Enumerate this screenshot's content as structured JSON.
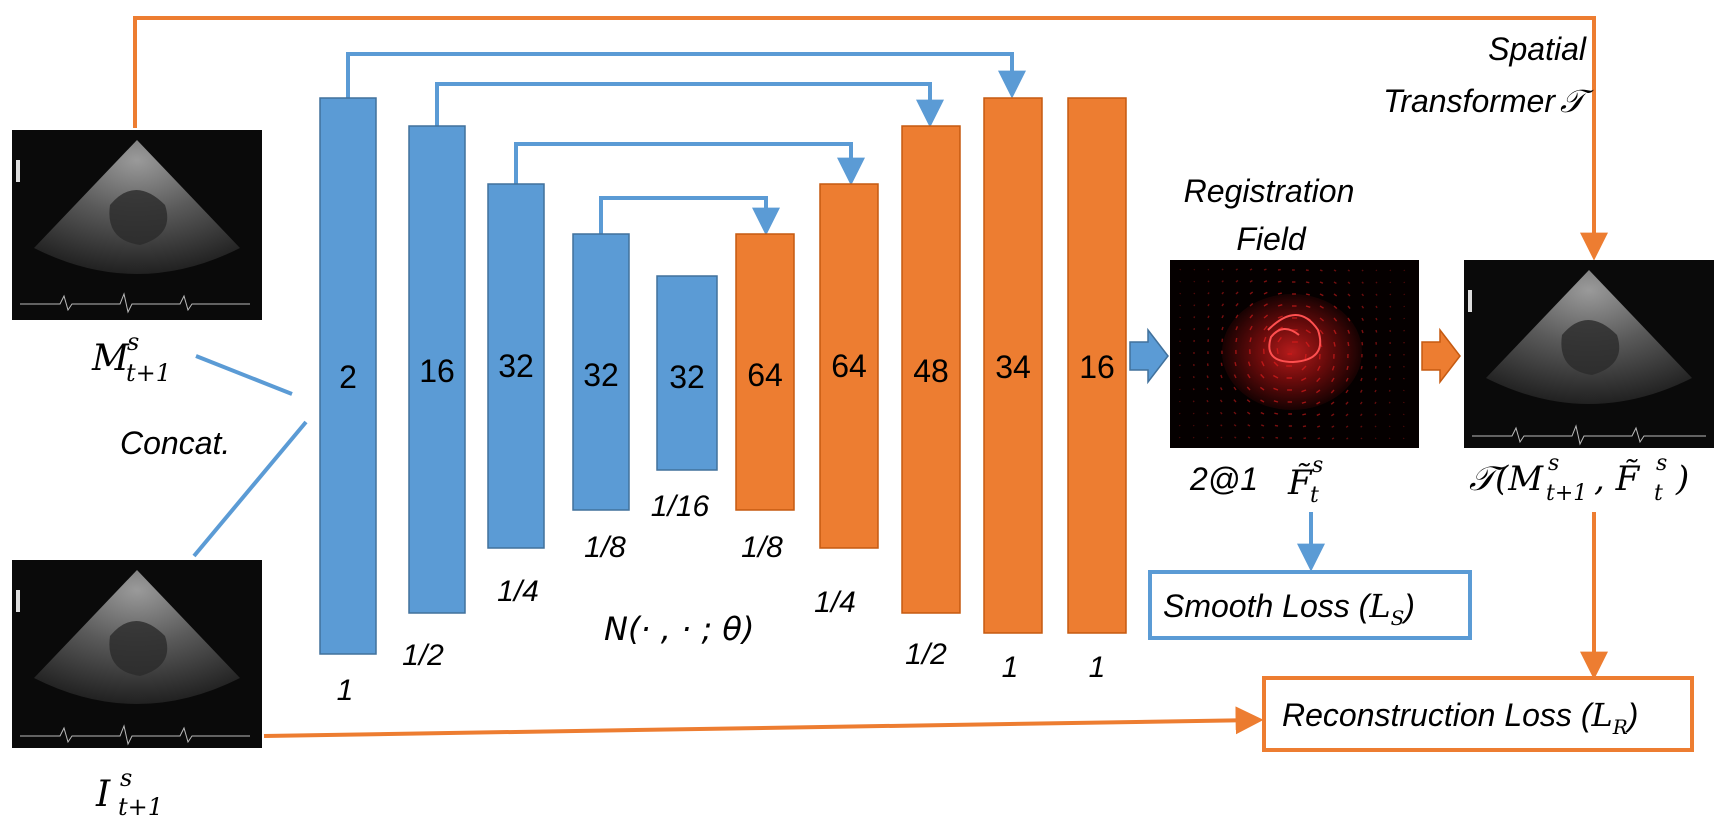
{
  "colors": {
    "encoder_blue": "#5B9BD5",
    "decoder_orange": "#ED7D31",
    "line_blue": "#5B9BD5",
    "line_orange": "#ED7D31",
    "ultrasound_bg": "#0a0a0a",
    "field_bg": "#050000",
    "field_arrows": "#cc1a1a"
  },
  "inputs": {
    "moving_label_main": "M",
    "moving_label_sup": "s",
    "moving_label_sub": "t+1",
    "fixed_label_main": "I",
    "fixed_label_sup": "s",
    "fixed_label_sub": "t+1",
    "concat_label": "Concat."
  },
  "network": {
    "encoder_blocks": [
      {
        "channels": "2",
        "scale": "1"
      },
      {
        "channels": "16",
        "scale": "1/2"
      },
      {
        "channels": "32",
        "scale": "1/4"
      },
      {
        "channels": "32",
        "scale": "1/8"
      },
      {
        "channels": "32",
        "scale": "1/16"
      }
    ],
    "decoder_blocks": [
      {
        "channels": "64",
        "scale": "1/8"
      },
      {
        "channels": "64",
        "scale": "1/4"
      },
      {
        "channels": "48",
        "scale": "1/2"
      },
      {
        "channels": "34",
        "scale": "1"
      },
      {
        "channels": "16",
        "scale": "1"
      }
    ],
    "label": "N(· , · ; θ)"
  },
  "registration": {
    "title_line1": "Registration",
    "title_line2": "Field",
    "size_label": "2@1",
    "field_symbol": "F̃",
    "field_sup": "s",
    "field_sub": "t"
  },
  "transformer": {
    "title_line1": "Spatial",
    "title_line2": "Transformer",
    "symbol": "𝒯",
    "output_label_prefix": "𝒯(M",
    "output_label_sup1": "s",
    "output_label_sub1": "t+1",
    "output_label_mid": ", F̃",
    "output_label_sup2": "s",
    "output_label_sub2": "t",
    "output_label_close": ")"
  },
  "losses": {
    "smooth_label": "Smooth Loss (",
    "smooth_symbol": "L",
    "smooth_sub": "S",
    "recon_label": "Reconstruction Loss (",
    "recon_symbol": "L",
    "recon_sub": "R",
    "close": ")"
  }
}
